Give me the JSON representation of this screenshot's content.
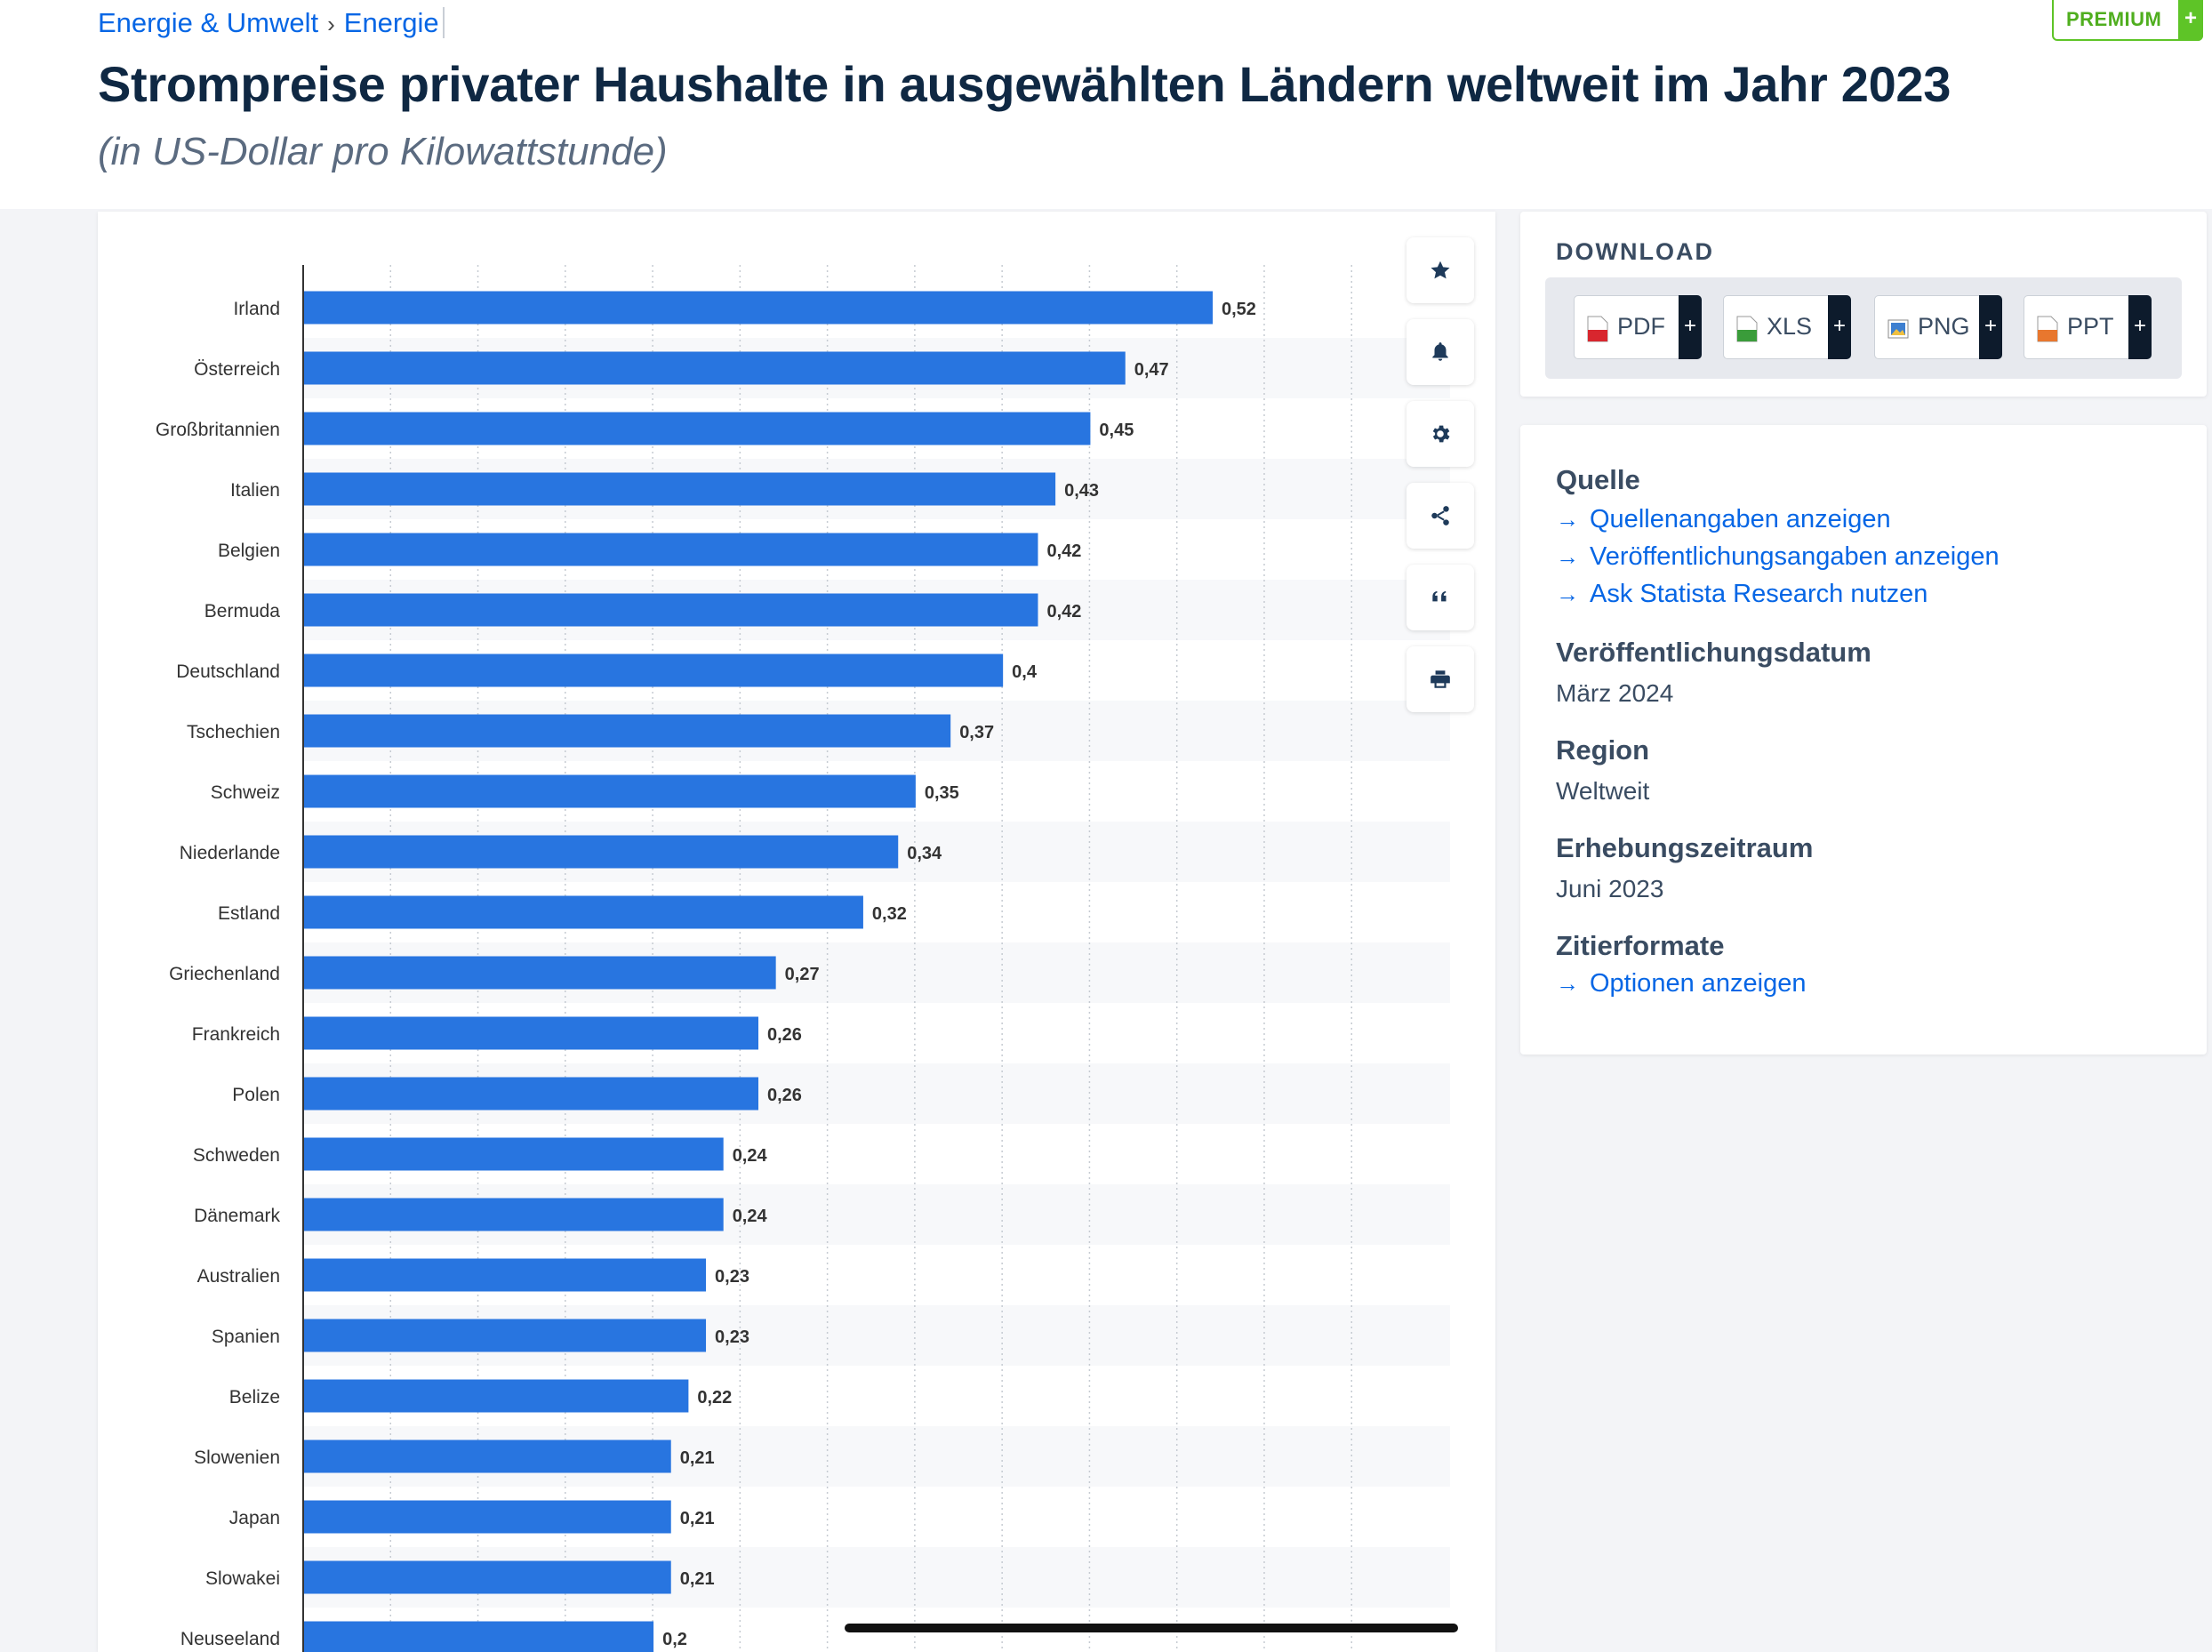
{
  "breadcrumb": {
    "items": [
      "Energie & Umwelt",
      "Energie"
    ],
    "separator": "›"
  },
  "premium": {
    "label": "PREMIUM",
    "plus": "+"
  },
  "header": {
    "title": "Strompreise privater Haushalte in ausgewählten Ländern weltweit im Jahr 2023",
    "subtitle": "(in US-Dollar pro Kilowattstunde)"
  },
  "chart_data": {
    "type": "bar",
    "orientation": "horizontal",
    "categories": [
      "Irland",
      "Österreich",
      "Großbritannien",
      "Italien",
      "Belgien",
      "Bermuda",
      "Deutschland",
      "Tschechien",
      "Schweiz",
      "Niederlande",
      "Estland",
      "Griechenland",
      "Frankreich",
      "Polen",
      "Schweden",
      "Dänemark",
      "Australien",
      "Spanien",
      "Belize",
      "Slowenien",
      "Japan",
      "Slowakei",
      "Neuseeland"
    ],
    "values": [
      0.52,
      0.47,
      0.45,
      0.43,
      0.42,
      0.42,
      0.4,
      0.37,
      0.35,
      0.34,
      0.32,
      0.27,
      0.26,
      0.26,
      0.24,
      0.24,
      0.23,
      0.23,
      0.22,
      0.21,
      0.21,
      0.21,
      0.2
    ],
    "value_labels": [
      "0,52",
      "0,47",
      "0,45",
      "0,43",
      "0,42",
      "0,42",
      "0,4",
      "0,37",
      "0,35",
      "0,34",
      "0,32",
      "0,27",
      "0,26",
      "0,26",
      "0,24",
      "0,24",
      "0,23",
      "0,23",
      "0,22",
      "0,21",
      "0,21",
      "0,21",
      "0,2"
    ],
    "title": "Strompreise privater Haushalte in ausgewählten Ländern weltweit im Jahr 2023",
    "xlabel": "",
    "ylabel": "",
    "xlim": [
      0,
      0.6
    ],
    "grid": true,
    "bar_color": "#2875e0"
  },
  "tools": [
    {
      "name": "star-icon",
      "label": "Favorit"
    },
    {
      "name": "bell-icon",
      "label": "Benachrichtigung"
    },
    {
      "name": "gear-icon",
      "label": "Einstellungen"
    },
    {
      "name": "share-icon",
      "label": "Teilen"
    },
    {
      "name": "quote-icon",
      "label": "Zitieren"
    },
    {
      "name": "print-icon",
      "label": "Drucken"
    }
  ],
  "download": {
    "title": "DOWNLOAD",
    "formats": [
      {
        "label": "PDF",
        "color": "#d8262e"
      },
      {
        "label": "XLS",
        "color": "#3a9c3a"
      },
      {
        "label": "PNG",
        "color": "#3d7fd0"
      },
      {
        "label": "PPT",
        "color": "#e8772e"
      }
    ],
    "plus": "+"
  },
  "info": {
    "source_heading": "Quelle",
    "links": [
      "Quellenangaben anzeigen",
      "Veröffentlichungsangaben anzeigen",
      "Ask Statista Research nutzen"
    ],
    "pubdate_heading": "Veröffentlichungsdatum",
    "pubdate_value": "März 2024",
    "region_heading": "Region",
    "region_value": "Weltweit",
    "period_heading": "Erhebungszeitraum",
    "period_value": "Juni 2023",
    "citation_heading": "Zitierformate",
    "citation_link": "Optionen anzeigen",
    "arrow": "→"
  }
}
